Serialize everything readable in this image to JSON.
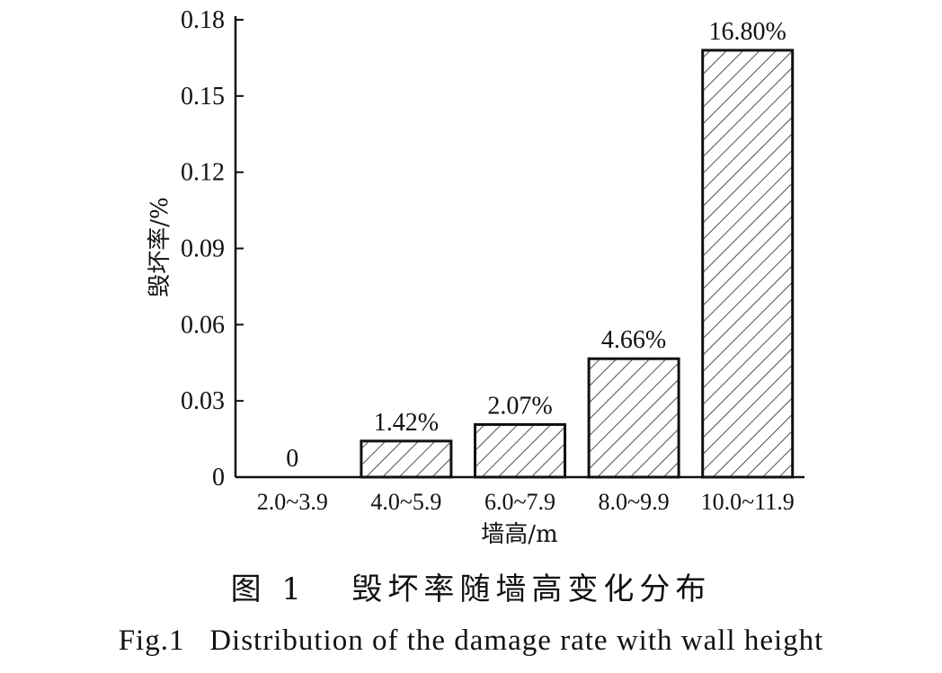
{
  "chart_data": {
    "type": "bar",
    "categories": [
      "2.0~3.9",
      "4.0~5.9",
      "6.0~7.9",
      "8.0~9.9",
      "10.0~11.9"
    ],
    "values": [
      0,
      0.0142,
      0.0207,
      0.0466,
      0.168
    ],
    "data_labels": [
      "0",
      "1.42%",
      "2.07%",
      "4.66%",
      "16.80%"
    ],
    "xlabel": "墙高/m",
    "ylabel": "毁坏率/%",
    "ylim": [
      0,
      0.18
    ],
    "yticks": [
      0,
      0.03,
      0.06,
      0.09,
      0.12,
      0.15,
      0.18
    ],
    "ytick_labels": [
      "0",
      "0.03",
      "0.06",
      "0.09",
      "0.12",
      "0.15",
      "0.18"
    ],
    "bar_fill": "diagonal hatch",
    "grid": false
  },
  "caption": {
    "cn": "图 1   毁坏率随墙高变化分布",
    "en": "Fig.1   Distribution of the damage rate with wall height"
  },
  "colors": {
    "ink": "#111111",
    "background": "#ffffff"
  }
}
